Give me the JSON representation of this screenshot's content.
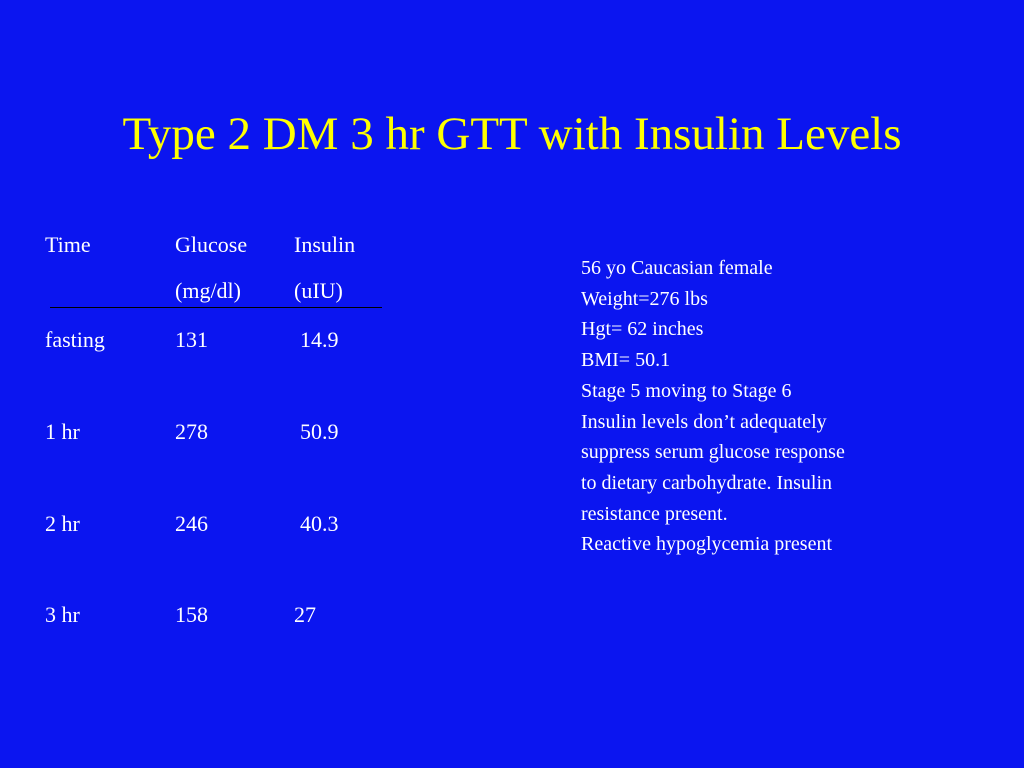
{
  "title": "Type 2 DM 3 hr GTT with Insulin Levels",
  "table": {
    "headers": [
      {
        "line1": "Time",
        "line2": ""
      },
      {
        "line1": "Glucose",
        "line2": "(mg/dl)"
      },
      {
        "line1": "Insulin",
        "line2": "(uIU)"
      }
    ],
    "rows": [
      {
        "time": "fasting",
        "glucose": "131",
        "insulin": " 14.9"
      },
      {
        "time": "1 hr",
        "glucose": "278",
        "insulin": " 50.9"
      },
      {
        "time": "2 hr",
        "glucose": "246",
        "insulin": " 40.3"
      },
      {
        "time": "3 hr",
        "glucose": "158",
        "insulin": "27"
      }
    ]
  },
  "notes": [
    "56 yo Caucasian female",
    "Weight=276 lbs",
    "Hgt= 62  inches",
    "BMI= 50.1",
    "Stage 5 moving to Stage 6",
    "Insulin levels don’t adequately",
    "suppress serum glucose response",
    "to dietary carbohydrate.  Insulin",
    "resistance present.",
    "Reactive hypoglycemia present"
  ],
  "colors": {
    "background": "#0b15f0",
    "title": "#ffff00",
    "text": "#ffffff",
    "rule": "#000000"
  }
}
